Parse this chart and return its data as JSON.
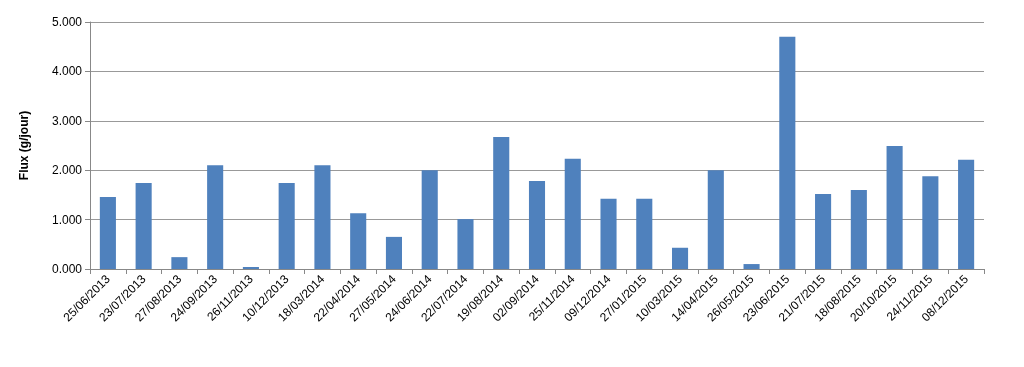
{
  "chart_data": {
    "type": "bar",
    "ylabel": "Flux (g/jour)",
    "categories": [
      "25/06/2013",
      "23/07/2013",
      "27/08/2013",
      "24/09/2013",
      "26/11/2013",
      "10/12/2013",
      "18/03/2014",
      "22/04/2014",
      "27/05/2014",
      "24/06/2014",
      "22/07/2014",
      "19/08/2014",
      "02/09/2014",
      "25/11/2014",
      "09/12/2014",
      "27/01/2015",
      "10/03/2015",
      "14/04/2015",
      "26/05/2015",
      "23/06/2015",
      "21/07/2015",
      "18/08/2015",
      "20/10/2015",
      "24/11/2015",
      "08/12/2015"
    ],
    "values": [
      1.46,
      1.74,
      0.24,
      2.1,
      0.04,
      1.74,
      2.1,
      1.13,
      0.65,
      2.0,
      1.01,
      2.67,
      1.78,
      2.23,
      1.42,
      1.42,
      0.43,
      2.0,
      0.1,
      4.7,
      1.52,
      1.6,
      2.49,
      1.88,
      2.21
    ],
    "color": "#4f81bd",
    "ylim": [
      0,
      5
    ],
    "yticks": [
      {
        "value": 0,
        "label": "0.000"
      },
      {
        "value": 1,
        "label": "1.000"
      },
      {
        "value": 2,
        "label": "2.000"
      },
      {
        "value": 3,
        "label": "3.000"
      },
      {
        "value": 4,
        "label": "4.000"
      },
      {
        "value": 5,
        "label": "5.000"
      }
    ],
    "grid": "y"
  }
}
